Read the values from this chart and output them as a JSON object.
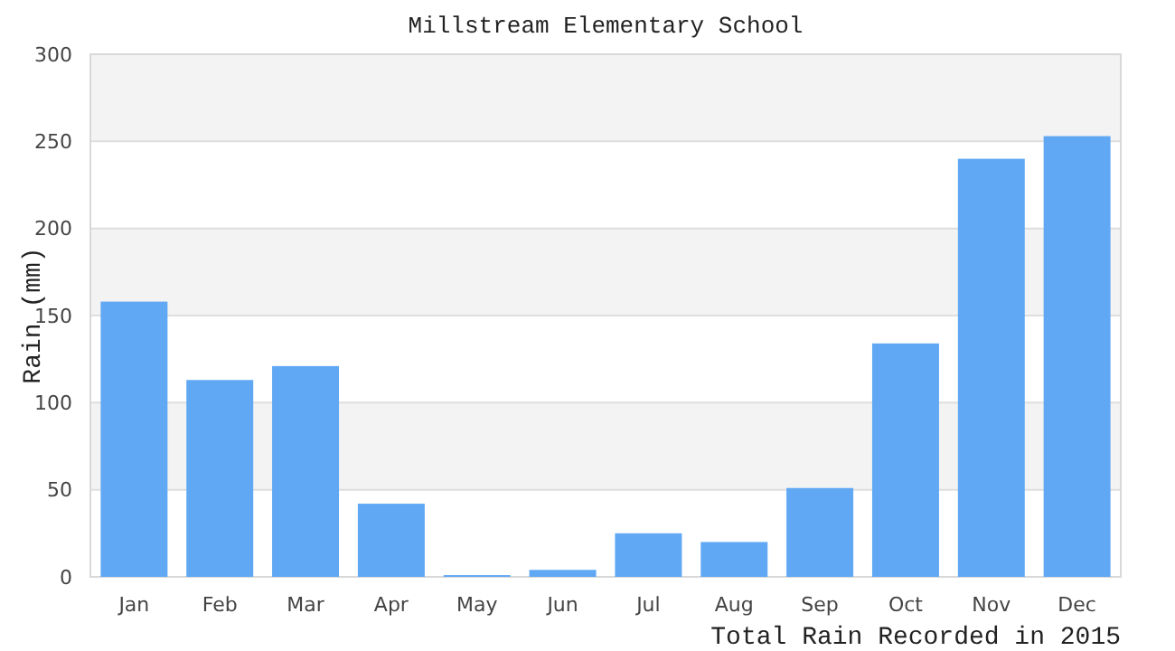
{
  "chart_data": {
    "type": "bar",
    "title": "Millstream Elementary School",
    "xlabel": "Total Rain Recorded in 2015",
    "ylabel": "Rain (mm)",
    "categories": [
      "Jan",
      "Feb",
      "Mar",
      "Apr",
      "May",
      "Jun",
      "Jul",
      "Aug",
      "Sep",
      "Oct",
      "Nov",
      "Dec"
    ],
    "values": [
      158,
      113,
      121,
      42,
      1,
      4,
      25,
      20,
      51,
      134,
      240,
      253
    ],
    "color": "#60a8f4",
    "ylim": [
      0,
      300
    ],
    "yticks": [
      0,
      50,
      100,
      150,
      200,
      250,
      300
    ],
    "grid": true
  }
}
